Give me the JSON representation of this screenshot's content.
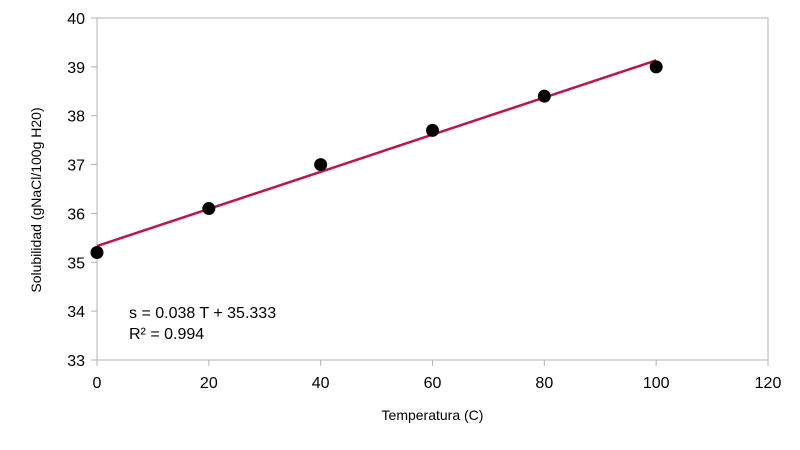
{
  "chart_data": {
    "type": "scatter",
    "title": "",
    "xlabel": "Temperatura (C)",
    "ylabel": "Solubilidad (gNaCl/100g H20)",
    "xlim": [
      0,
      120
    ],
    "ylim": [
      33,
      40
    ],
    "xticks": [
      0,
      20,
      40,
      60,
      80,
      100,
      120
    ],
    "yticks": [
      33,
      34,
      35,
      36,
      37,
      38,
      39,
      40
    ],
    "grid": false,
    "legend": "none",
    "series": [
      {
        "x": [
          0,
          20,
          40,
          60,
          80,
          100
        ],
        "y": [
          35.2,
          36.1,
          37.0,
          37.7,
          38.4,
          39.0
        ],
        "marker_color": "#000000"
      }
    ],
    "trendline": {
      "slope": 0.038,
      "intercept": 35.333,
      "x_range": [
        0,
        100
      ],
      "color": "#c0134a"
    },
    "annotations": [
      "s = 0.038 T + 35.333",
      "R² = 0.994"
    ]
  }
}
